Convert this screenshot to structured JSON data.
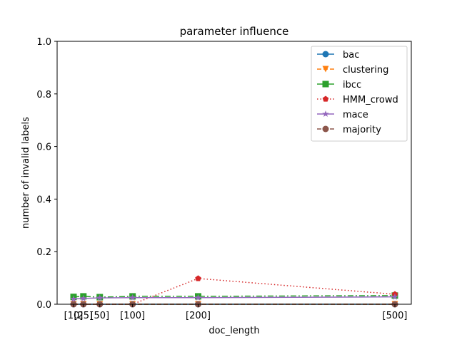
{
  "chart_data": {
    "type": "line",
    "title": "parameter influence",
    "xlabel": "doc_length",
    "ylabel": "number of invalid labels",
    "x": [
      10,
      25,
      50,
      100,
      200,
      500
    ],
    "x_tick_labels": [
      "[10]",
      "[25]",
      "[50]",
      "[100]",
      "[200]",
      "[500]"
    ],
    "ylim": [
      0,
      1.0
    ],
    "y_ticks": [
      0.0,
      0.2,
      0.4,
      0.6,
      0.8,
      1.0
    ],
    "y_tick_labels": [
      "0.0",
      "0.2",
      "0.4",
      "0.6",
      "0.8",
      "1.0"
    ],
    "grid": false,
    "legend_position": "top-right",
    "series": [
      {
        "name": "bac",
        "color": "#1f77b4",
        "dash": "solid",
        "marker": "circle",
        "values": [
          0.0,
          0.0,
          0.0,
          0.0,
          0.0,
          0.0
        ]
      },
      {
        "name": "clustering",
        "color": "#ff7f0e",
        "dash": "dashed",
        "marker": "triangle-down",
        "values": [
          0.0,
          0.0,
          0.0,
          0.0,
          0.0,
          0.0
        ]
      },
      {
        "name": "ibcc",
        "color": "#2ca02c",
        "dash": "dashdot",
        "marker": "square",
        "values": [
          0.028,
          0.03,
          0.027,
          0.03,
          0.03,
          0.033
        ]
      },
      {
        "name": "HMM_crowd",
        "color": "#d62728",
        "dash": "dotted",
        "marker": "pentagon",
        "values": [
          0.0,
          0.0,
          0.0,
          0.0,
          0.098,
          0.038
        ]
      },
      {
        "name": "mace",
        "color": "#9467bd",
        "dash": "solid",
        "marker": "star",
        "values": [
          0.02,
          0.022,
          0.024,
          0.025,
          0.025,
          0.028
        ]
      },
      {
        "name": "majority",
        "color": "#8c564b",
        "dash": "dashed",
        "marker": "circle",
        "values": [
          0.0,
          0.0,
          0.0,
          0.0,
          0.0,
          0.0
        ]
      }
    ]
  }
}
